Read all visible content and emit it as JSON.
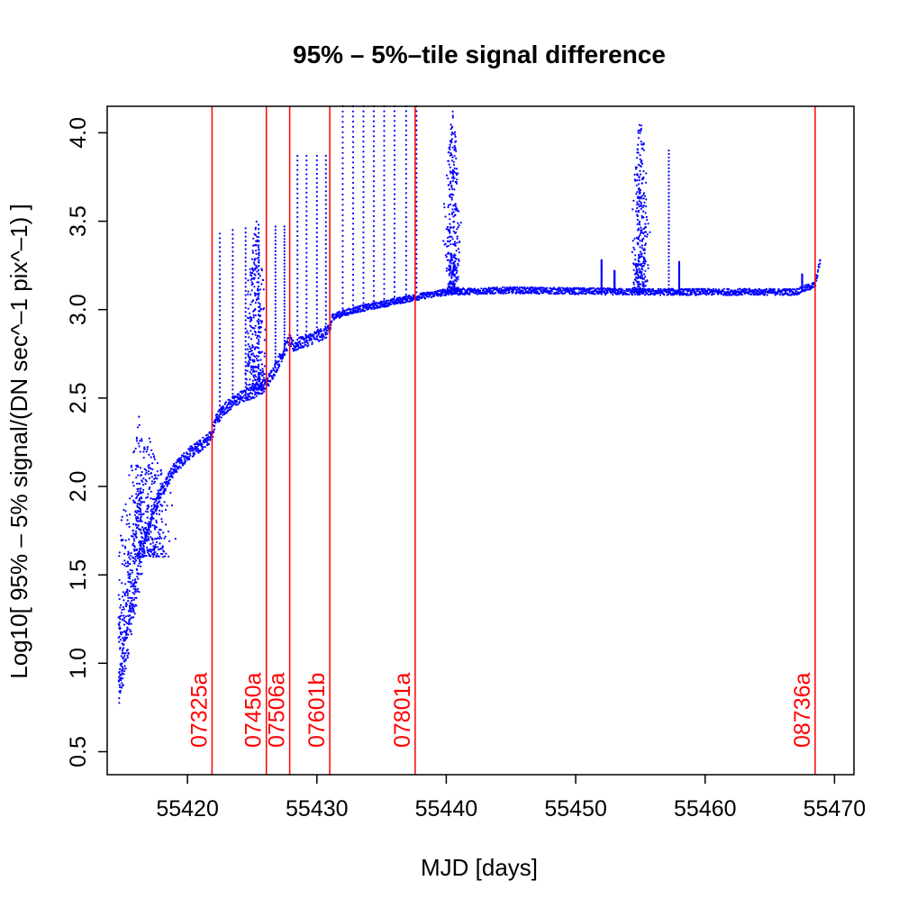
{
  "chart_data": {
    "type": "scatter",
    "title": "95% – 5%–tile signal difference",
    "xlabel": "MJD [days]",
    "ylabel": "Log10[ 95% – 5% signal/(DN sec^–1 pix^–1) ]",
    "xlim": [
      55413.8,
      55471.5
    ],
    "ylim": [
      0.37,
      4.15
    ],
    "xticks": [
      55420,
      55430,
      55440,
      55450,
      55460,
      55470
    ],
    "yticks": [
      0.5,
      1.0,
      1.5,
      2.0,
      2.5,
      3.0,
      3.5,
      4.0
    ],
    "ytick_labels": [
      "0.5",
      "1.0",
      "1.5",
      "2.0",
      "2.5",
      "3.0",
      "3.5",
      "4.0"
    ],
    "grid": false,
    "colors": {
      "points": "#0000ff",
      "markers": "#ff0000",
      "axes": "#000000"
    },
    "markers": [
      {
        "x": 55421.9,
        "label": "07325a"
      },
      {
        "x": 55426.1,
        "label": "07450a"
      },
      {
        "x": 55427.9,
        "label": "07506a"
      },
      {
        "x": 55431.0,
        "label": "07601b"
      },
      {
        "x": 55437.6,
        "label": "07801a"
      },
      {
        "x": 55468.5,
        "label": "08736a"
      }
    ],
    "baseline": [
      {
        "x": 55414.7,
        "y": 0.86
      },
      {
        "x": 55415.0,
        "y": 0.95
      },
      {
        "x": 55415.4,
        "y": 1.15
      },
      {
        "x": 55416.0,
        "y": 1.42
      },
      {
        "x": 55416.6,
        "y": 1.65
      },
      {
        "x": 55417.3,
        "y": 1.85
      },
      {
        "x": 55418.0,
        "y": 1.98
      },
      {
        "x": 55419.0,
        "y": 2.1
      },
      {
        "x": 55420.0,
        "y": 2.18
      },
      {
        "x": 55421.0,
        "y": 2.23
      },
      {
        "x": 55421.9,
        "y": 2.29
      },
      {
        "x": 55422.2,
        "y": 2.38
      },
      {
        "x": 55423.0,
        "y": 2.45
      },
      {
        "x": 55424.0,
        "y": 2.5
      },
      {
        "x": 55425.0,
        "y": 2.53
      },
      {
        "x": 55426.0,
        "y": 2.57
      },
      {
        "x": 55426.5,
        "y": 2.63
      },
      {
        "x": 55427.0,
        "y": 2.7
      },
      {
        "x": 55427.9,
        "y": 2.83
      },
      {
        "x": 55428.1,
        "y": 2.79
      },
      {
        "x": 55429.0,
        "y": 2.82
      },
      {
        "x": 55430.0,
        "y": 2.85
      },
      {
        "x": 55431.0,
        "y": 2.88
      },
      {
        "x": 55431.2,
        "y": 2.96
      },
      {
        "x": 55433.0,
        "y": 3.0
      },
      {
        "x": 55435.0,
        "y": 3.03
      },
      {
        "x": 55437.6,
        "y": 3.07
      },
      {
        "x": 55440.0,
        "y": 3.1
      },
      {
        "x": 55445.0,
        "y": 3.11
      },
      {
        "x": 55455.0,
        "y": 3.1
      },
      {
        "x": 55467.0,
        "y": 3.1
      },
      {
        "x": 55468.5,
        "y": 3.14
      },
      {
        "x": 55468.9,
        "y": 3.28
      }
    ],
    "spikes": [
      {
        "x": 55422.5,
        "y": 3.43
      },
      {
        "x": 55423.5,
        "y": 3.45
      },
      {
        "x": 55424.5,
        "y": 3.46
      },
      {
        "x": 55425.5,
        "y": 3.48
      },
      {
        "x": 55426.8,
        "y": 3.47
      },
      {
        "x": 55427.5,
        "y": 3.47
      },
      {
        "x": 55428.5,
        "y": 3.87
      },
      {
        "x": 55429.2,
        "y": 3.87
      },
      {
        "x": 55430.0,
        "y": 3.87
      },
      {
        "x": 55430.7,
        "y": 3.87
      },
      {
        "x": 55432.0,
        "y": 4.15
      },
      {
        "x": 55432.8,
        "y": 4.15
      },
      {
        "x": 55433.6,
        "y": 4.15
      },
      {
        "x": 55434.4,
        "y": 4.15
      },
      {
        "x": 55435.2,
        "y": 4.15
      },
      {
        "x": 55436.0,
        "y": 4.15
      },
      {
        "x": 55436.9,
        "y": 4.15
      },
      {
        "x": 55437.7,
        "y": 4.15
      },
      {
        "x": 55452.0,
        "y": 3.28
      },
      {
        "x": 55453.0,
        "y": 3.22
      },
      {
        "x": 55457.2,
        "y": 3.9
      },
      {
        "x": 55458.0,
        "y": 3.27
      },
      {
        "x": 55467.5,
        "y": 3.2
      }
    ],
    "bursts": [
      {
        "x_center": 55425.3,
        "half_width": 1.0,
        "y_min": 2.55,
        "y_max": 3.53
      },
      {
        "x_center": 55440.5,
        "half_width": 0.8,
        "y_min": 3.1,
        "y_max": 4.15
      },
      {
        "x_center": 55455.0,
        "half_width": 0.8,
        "y_min": 3.1,
        "y_max": 4.15
      },
      {
        "x_center": 55417.0,
        "half_width": 2.2,
        "y_min": 1.6,
        "y_max": 2.3
      }
    ]
  }
}
